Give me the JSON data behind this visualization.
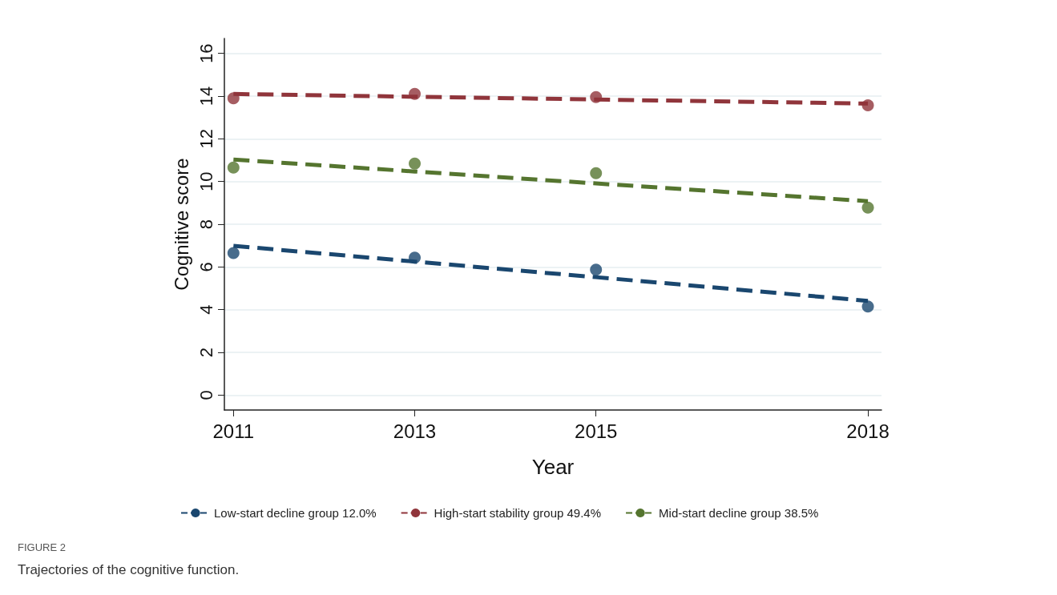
{
  "chart_data": {
    "type": "scatter",
    "xlabel": "Year",
    "ylabel": "Cognitive score",
    "x": [
      2011,
      2013,
      2015,
      2018
    ],
    "series": [
      {
        "color": "#1a476f",
        "marker": "circle",
        "values": [
          6.65,
          6.43,
          5.87,
          4.15
        ]
      },
      {
        "color": "#90353b",
        "marker": "circle",
        "values": [
          13.9,
          14.1,
          13.95,
          13.57
        ]
      },
      {
        "color": "#55752f",
        "marker": "circle",
        "values": [
          10.65,
          10.84,
          10.39,
          8.78
        ]
      },
      {
        "type": "line",
        "name": "Low-start decline group 12.0%",
        "color": "#1a476f",
        "marker": "none",
        "line_style": "dashed",
        "values": [
          6.99,
          6.25,
          5.52,
          4.41
        ]
      },
      {
        "type": "line",
        "name": "High-start stability group 49.4%",
        "color": "#90353b",
        "marker": "none",
        "line_style": "dashed",
        "values": [
          14.1,
          13.97,
          13.84,
          13.65
        ]
      },
      {
        "type": "line",
        "name": "Mid-start decline group 38.5%",
        "color": "#55752f",
        "marker": "none",
        "line_style": "dashed",
        "values": [
          11.03,
          10.47,
          9.91,
          9.08
        ]
      }
    ],
    "xlim": [
      2010.9,
      2018.15
    ],
    "xticks": [
      2011,
      2013,
      2015,
      2018
    ],
    "ylim": [
      -0.7,
      16.7
    ],
    "yticks": [
      0,
      2,
      4,
      6,
      8,
      10,
      12,
      14,
      16
    ],
    "grid": "y",
    "legend": "bottom",
    "annotations": [
      "FIGURE 2",
      "Trajectories of the cognitive function."
    ]
  }
}
